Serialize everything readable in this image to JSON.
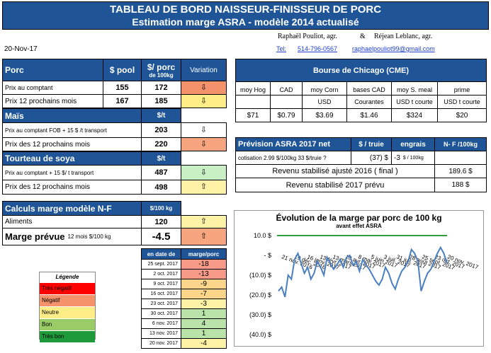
{
  "title": {
    "line1": "TABLEAU DE BORD NAISSEUR-FINISSEUR DE PORC",
    "line2": "Estimation marge ASRA - modèle 2014 actualisé"
  },
  "authors": {
    "name1": "Raphaël Pouliot, agr.",
    "amp": "&",
    "name2": "Réjean Leblanc, agr.",
    "tel_label": "Tel:",
    "tel": "514-796-0567",
    "email": "raphaelpouliot99@gmail.com"
  },
  "date": "20-Nov-17",
  "porc": {
    "header": {
      "label": "Porc",
      "pool": "$ pool",
      "per_porc": "$/ porc",
      "per_porc_sub": "de 100kg",
      "variation": "Variation"
    },
    "rows": [
      {
        "label": "Prix au comptant",
        "pool": "155",
        "value": "172",
        "arrow": "⇩"
      },
      {
        "label": "Prix 12 prochains mois",
        "pool": "167",
        "value": "185",
        "arrow": "⇩"
      }
    ]
  },
  "mais": {
    "header": {
      "label": "Maïs",
      "unit": "$/t"
    },
    "rows": [
      {
        "label": "Prix au comptant FOB + 15 $ /t transport",
        "value": "203",
        "arrow": "⇩"
      },
      {
        "label": "Prix des 12 prochains mois",
        "value": "220",
        "arrow": "⇩"
      }
    ]
  },
  "soya": {
    "header": {
      "label": "Tourteau de soya",
      "unit": "$/t"
    },
    "rows": [
      {
        "label": "Prix au comptant + 15 $/ t transport",
        "value": "487",
        "arrow": "⇩"
      },
      {
        "label": "Prix des 12 prochains mois",
        "value": "498",
        "arrow": "⇧"
      }
    ]
  },
  "calculs": {
    "header": {
      "label": "Calculs marge  modèle N-F",
      "unit": "$/100 kg"
    },
    "aliments": {
      "label": "Aliments",
      "value": "120",
      "arrow": "⇧"
    },
    "marge": {
      "label": "Marge prévue",
      "sub": "12 mois  $/100 kg",
      "value": "-4.5",
      "arrow": "⇧"
    }
  },
  "history": {
    "header": {
      "date": "en date de",
      "marge": "marge/porc"
    },
    "rows": [
      {
        "date": "25 sept. 2017",
        "value": "-18",
        "color": "#f79a88"
      },
      {
        "date": "2 oct. 2017",
        "value": "-13",
        "color": "#f79a88"
      },
      {
        "date": "9 oct. 2017",
        "value": "-9",
        "color": "#fcd48a"
      },
      {
        "date": "16 oct. 2017",
        "value": "-7",
        "color": "#fcd48a"
      },
      {
        "date": "23 oct. 2017",
        "value": "-3",
        "color": "#fdf2a6"
      },
      {
        "date": "30 oct. 2017",
        "value": "1",
        "color": "#b9e3a8"
      },
      {
        "date": "6 nov. 2017",
        "value": "4",
        "color": "#b9e3a8"
      },
      {
        "date": "13 nov. 2017",
        "value": "1",
        "color": "#b9e3a8"
      },
      {
        "date": "20 nov. 2017",
        "value": "-4",
        "color": "#fdf2a6"
      }
    ]
  },
  "legend": {
    "title": "Légende",
    "items": [
      {
        "label": "Très négatif",
        "color": "#ff0000"
      },
      {
        "label": "Négatif",
        "color": "#f4926c"
      },
      {
        "label": "Neutre",
        "color": "#ffee88"
      },
      {
        "label": "Bon",
        "color": "#99cc66"
      },
      {
        "label": "Très bon",
        "color": "#1e9a3b"
      }
    ]
  },
  "cme": {
    "title": "Bourse de Chicago (CME)",
    "columns": [
      {
        "name": "moy Hog",
        "unit": "",
        "value": "$71"
      },
      {
        "name": "CAD",
        "unit": "",
        "value": "$0.79"
      },
      {
        "name": "moy Corn",
        "unit": "USD",
        "value": "$3.69"
      },
      {
        "name": "bases CAD",
        "unit": "Courantes",
        "value": "$1.46"
      },
      {
        "name": "moy S. meal",
        "unit": "USD t courte",
        "value": "$324"
      },
      {
        "name": "prime",
        "unit": "USD t courte",
        "value": "$20"
      }
    ]
  },
  "prevision": {
    "header": {
      "title": "Prévision ASRA 2017 net",
      "col1": "$ / truie",
      "col2": "engrais",
      "col3": "N- F /100kg"
    },
    "cotisation": {
      "label": "cotisation 2.99 $/100kg  33 $/truie ?",
      "truie": "(37) $",
      "engrais": "-3",
      "engrais_unit": "$ / 100kg"
    },
    "revenu2016": {
      "label": "Revenu stabilisé ajusté 2016 ( final )",
      "value": "189.6 $"
    },
    "revenu2017": {
      "label": "Revenu stabilisé 2017 prévu",
      "value": "188 $"
    }
  },
  "chart_data": {
    "type": "line",
    "title": "Évolution de la marge par porc de 100 kg",
    "subtitle": "avant effet ASRA",
    "ylim": [
      -40,
      10
    ],
    "yticks": [
      10,
      0,
      -10,
      -20,
      -30,
      -40
    ],
    "ytick_labels": [
      "10.0 $",
      "-   $",
      "(10.0) $",
      "(20.0) $",
      "(30.0) $",
      "(40.0) $"
    ],
    "xtick_labels": [
      "21 nov. 2016",
      "19 déc. 2016",
      "16 janv. 2017",
      "13 févr. 2017",
      "13 mars 2017",
      "10 avr. 2017",
      "8 mai 2017",
      "5 juin 2017",
      "3 juil. 2017",
      "31 juil. 2017",
      "28 août 2017",
      "25 sept. 2017",
      "23 oct. 2017",
      "20 nov. 2017"
    ],
    "series": [
      {
        "name": "marge",
        "color": "#4a7fc0",
        "values": [
          -18,
          -16,
          -21,
          -10,
          -12,
          -2,
          1,
          -4,
          -9,
          -6,
          -12,
          -9,
          -3,
          -6,
          -10,
          -1,
          -4,
          -7,
          -5,
          -2,
          -6,
          -1,
          0,
          -5,
          -3,
          -8,
          -2,
          -5,
          -7,
          -10,
          -13,
          -15,
          -12,
          -6,
          -9,
          -14,
          -17,
          -12,
          -8,
          -6,
          -3,
          3,
          1,
          -3,
          -18,
          -13,
          -9,
          -7,
          -3,
          1,
          4,
          1,
          -4
        ]
      },
      {
        "name": "seuil",
        "color": "#2e9e3e",
        "values": [
          10,
          10
        ]
      }
    ]
  }
}
